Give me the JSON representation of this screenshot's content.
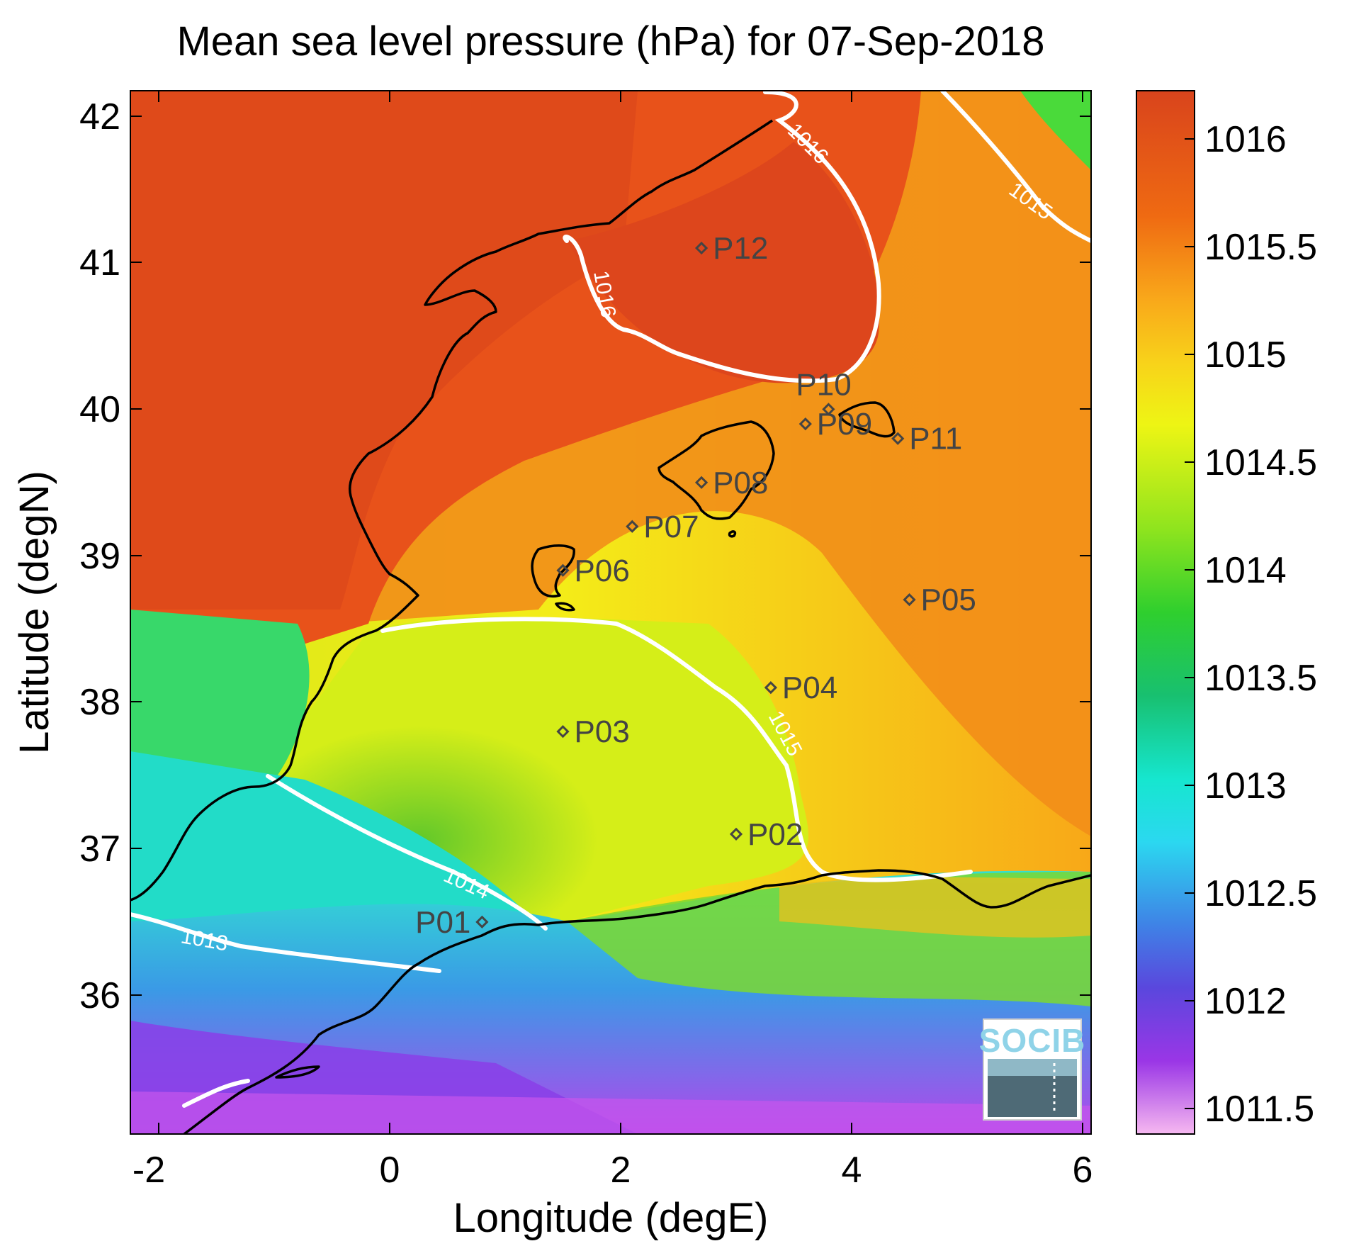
{
  "title": "Mean sea level pressure (hPa) for 07-Sep-2018",
  "xlabel": "Longitude (degE)",
  "ylabel": "Latitude (degN)",
  "x_ticks": [
    "-2",
    "0",
    "2",
    "4",
    "6"
  ],
  "y_ticks": [
    "42",
    "41",
    "40",
    "39",
    "38",
    "37",
    "36"
  ],
  "colorbar": {
    "ticks": [
      "1016",
      "1015.5",
      "1015",
      "1014.5",
      "1014",
      "1013.5",
      "1013",
      "1012.5",
      "1012",
      "1011.5"
    ]
  },
  "contours": [
    {
      "label": "1016"
    },
    {
      "label": "1015"
    },
    {
      "label": "1014"
    },
    {
      "label": "1013"
    }
  ],
  "stations": [
    {
      "id": "P01",
      "lon": 0.8,
      "lat": 36.5
    },
    {
      "id": "P02",
      "lon": 3.0,
      "lat": 37.1
    },
    {
      "id": "P03",
      "lon": 1.5,
      "lat": 37.8
    },
    {
      "id": "P04",
      "lon": 3.3,
      "lat": 38.1
    },
    {
      "id": "P05",
      "lon": 4.5,
      "lat": 38.7
    },
    {
      "id": "P06",
      "lon": 1.5,
      "lat": 38.9
    },
    {
      "id": "P07",
      "lon": 2.1,
      "lat": 39.2
    },
    {
      "id": "P08",
      "lon": 2.7,
      "lat": 39.5
    },
    {
      "id": "P09",
      "lon": 3.6,
      "lat": 39.9
    },
    {
      "id": "P10",
      "lon": 3.8,
      "lat": 40.0
    },
    {
      "id": "P11",
      "lon": 4.4,
      "lat": 39.8
    },
    {
      "id": "P12",
      "lon": 2.7,
      "lat": 41.1
    }
  ],
  "logo": {
    "text": "SOCIB"
  },
  "colors": {
    "high": "#e04a1c",
    "mid_high": "#f7a21a",
    "mid": "#f2f214",
    "mid_low": "#22d33a",
    "low": "#20e6e0",
    "lower": "#4a3fe0",
    "lowest": "#f0b0f0",
    "contour": "#ffffff",
    "coastline": "#000000"
  }
}
